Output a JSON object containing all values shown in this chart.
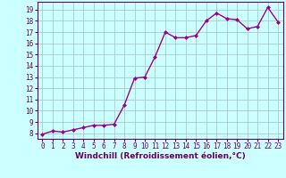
{
  "x": [
    0,
    1,
    2,
    3,
    4,
    5,
    6,
    7,
    8,
    9,
    10,
    11,
    12,
    13,
    14,
    15,
    16,
    17,
    18,
    19,
    20,
    21,
    22,
    23
  ],
  "y": [
    7.9,
    8.2,
    8.1,
    8.3,
    8.5,
    8.7,
    8.7,
    8.8,
    10.5,
    12.9,
    13.0,
    14.8,
    17.0,
    16.5,
    16.5,
    16.7,
    18.0,
    18.7,
    18.2,
    18.1,
    17.3,
    17.5,
    19.2,
    17.9
  ],
  "line_color": "#990099",
  "marker": "D",
  "marker_size": 2.0,
  "line_width": 1.0,
  "bg_color": "#ccffff",
  "grid_color": "#aacccc",
  "xlabel": "Windchill (Refroidissement éolien,°C)",
  "xlabel_fontsize": 6.5,
  "tick_fontsize": 5.5,
  "xlim": [
    -0.5,
    23.5
  ],
  "ylim": [
    7.5,
    19.7
  ],
  "yticks": [
    8,
    9,
    10,
    11,
    12,
    13,
    14,
    15,
    16,
    17,
    18,
    19
  ],
  "xticks": [
    0,
    1,
    2,
    3,
    4,
    5,
    6,
    7,
    8,
    9,
    10,
    11,
    12,
    13,
    14,
    15,
    16,
    17,
    18,
    19,
    20,
    21,
    22,
    23
  ],
  "label_color": "#660066"
}
